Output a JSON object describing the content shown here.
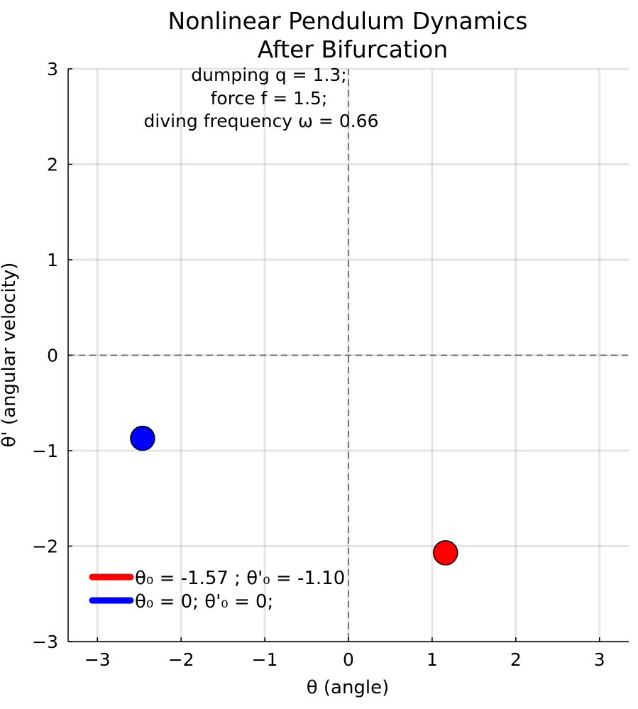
{
  "chart_data": {
    "type": "scatter",
    "title": [
      "Nonlinear Pendulum Dynamics",
      "After Bifurcation"
    ],
    "xlabel": "θ (angle)",
    "ylabel": "θ' (angular velocity)",
    "xlim": [
      -3.35,
      3.35
    ],
    "ylim": [
      -3,
      3
    ],
    "xticks": [
      -3,
      -2,
      -1,
      0,
      1,
      2,
      3
    ],
    "xtick_labels": [
      "−3",
      "−2",
      "−1",
      "0",
      "1",
      "2",
      "3"
    ],
    "yticks": [
      -3,
      -2,
      -1,
      0,
      1,
      2,
      3
    ],
    "ytick_labels": [
      "−3",
      "−2",
      "−1",
      "0",
      "1",
      "2",
      "3"
    ],
    "grid": true,
    "zero_lines": "dashed",
    "annotation": [
      "dumping q = 1.3;",
      "force f = 1.5;",
      "diving frequency ω = 0.66"
    ],
    "legend_position": "bottom-left",
    "series": [
      {
        "name": "θ₀ = -1.57 ; θ'₀ = -1.10",
        "color": "#ff0000",
        "x": [
          1.16
        ],
        "y": [
          -2.07
        ]
      },
      {
        "name": "θ₀ = 0; θ'₀ = 0;",
        "color": "#0000ff",
        "x": [
          -2.46
        ],
        "y": [
          -0.87
        ]
      }
    ]
  }
}
